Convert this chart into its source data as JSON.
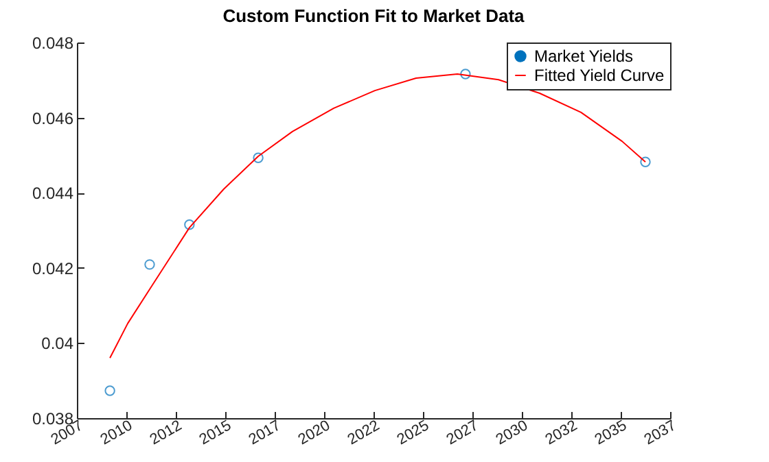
{
  "chart_data": {
    "type": "scatter",
    "title": "Custom Function Fit to Market Data",
    "series": [
      {
        "name": "Market Yields",
        "type": "scatter",
        "marker": "circle",
        "color": "#0072bd",
        "x": [
          2008.67,
          2010.68,
          2012.69,
          2016.17,
          2026.65,
          2035.75
        ],
        "values": [
          0.03873,
          0.04209,
          0.04315,
          0.04493,
          0.04716,
          0.04482
        ]
      },
      {
        "name": "Fitted Yield Curve",
        "type": "line",
        "marker": "none",
        "line_style": "solid",
        "color": "#ff0000",
        "x": [
          2008.67,
          2009.57,
          2010.68,
          2012.69,
          2014.43,
          2016.17,
          2017.9,
          2019.99,
          2022.07,
          2024.15,
          2026.24,
          2028.32,
          2030.4,
          2032.49,
          2034.57,
          2035.75
        ],
        "values": [
          0.0396,
          0.04052,
          0.04143,
          0.04307,
          0.0441,
          0.04497,
          0.04563,
          0.04625,
          0.04672,
          0.04705,
          0.04716,
          0.04701,
          0.04665,
          0.04614,
          0.04537,
          0.04482
        ]
      }
    ],
    "xlim": [
      2007,
      2037
    ],
    "xticks": [
      2007,
      {
        "value": 2009.5,
        "label": "2010"
      },
      2012,
      {
        "value": 2014.5,
        "label": "2015"
      },
      2017,
      {
        "value": 2019.5,
        "label": "2020"
      },
      2022,
      {
        "value": 2024.5,
        "label": "2025"
      },
      2027,
      {
        "value": 2029.5,
        "label": "2030"
      },
      2032,
      {
        "value": 2034.5,
        "label": "2035"
      },
      2037
    ],
    "ylim": [
      0.038,
      0.048
    ],
    "yticks": [
      0.038,
      0.04,
      0.042,
      0.044,
      0.046,
      0.048
    ],
    "grid": false,
    "legend": "top right"
  }
}
